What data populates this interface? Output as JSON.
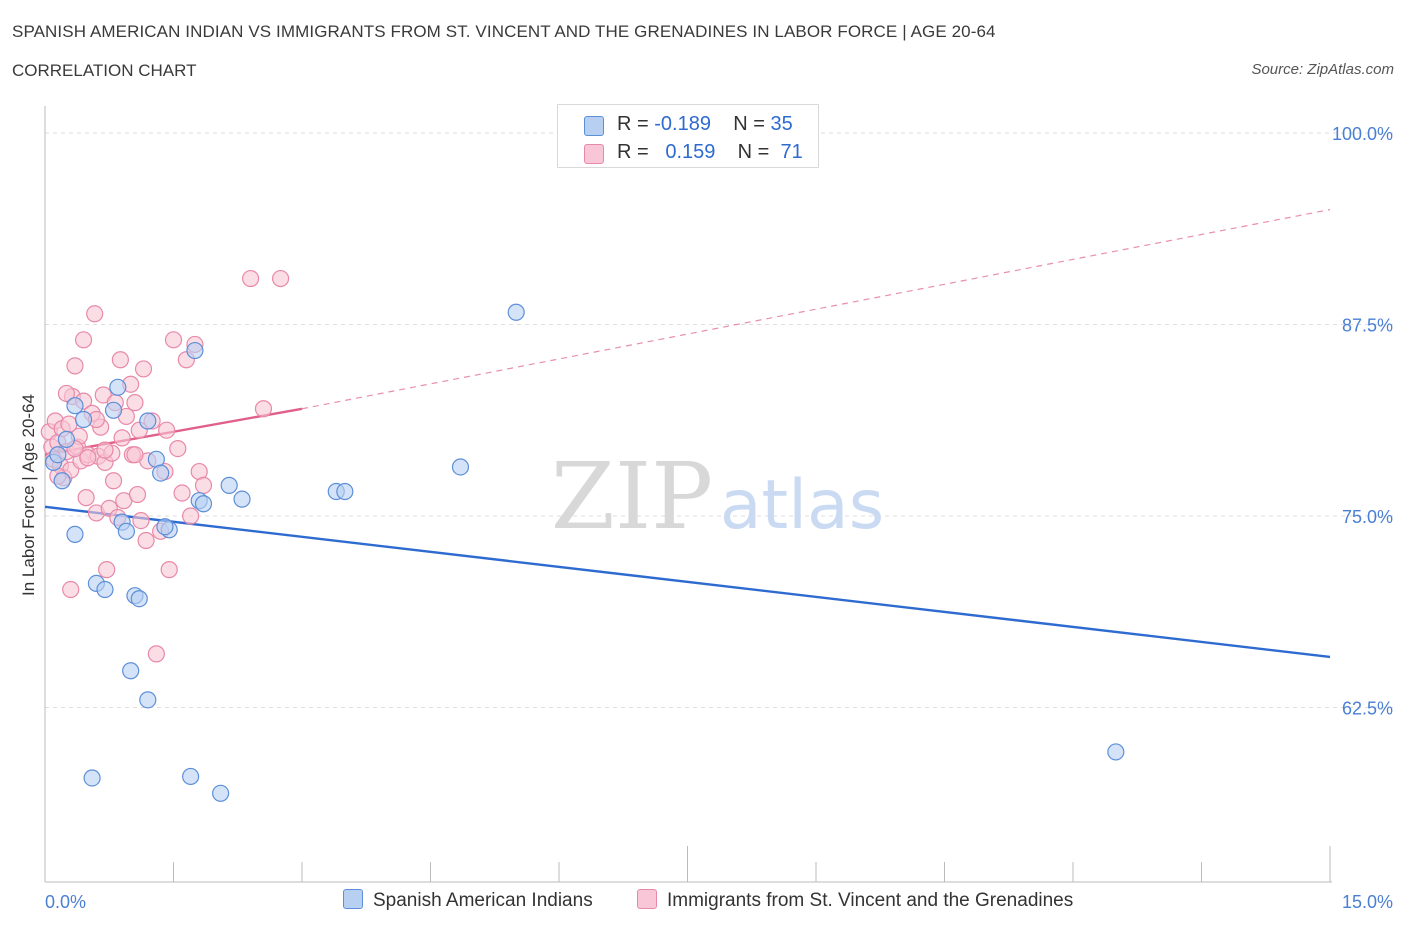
{
  "header": {
    "title": "SPANISH AMERICAN INDIAN VS IMMIGRANTS FROM ST. VINCENT AND THE GRENADINES IN LABOR FORCE | AGE 20-64",
    "subtitle": "CORRELATION CHART",
    "source": "Source: ZipAtlas.com"
  },
  "colors": {
    "blue_fill": "#b7d0f2",
    "blue_stroke": "#5d8fd8",
    "blue_line": "#2e6bd0",
    "pink_fill": "#f8c6d6",
    "pink_stroke": "#e889a8",
    "pink_line": "#e0608a",
    "grid": "#dddddd",
    "tick_label": "#4a7fd4"
  },
  "legend": {
    "r_label": "R =",
    "n_label": "N =",
    "blue": {
      "r": "-0.189",
      "n": "35"
    },
    "pink": {
      "r": "0.159",
      "n": "71"
    }
  },
  "watermark": {
    "zip": "ZIP",
    "atlas": "atlas"
  },
  "chart_data": {
    "type": "scatter",
    "title": "SPANISH AMERICAN INDIAN VS IMMIGRANTS FROM ST. VINCENT AND THE GRENADINES IN LABOR FORCE | AGE 20-64",
    "xlabel": "",
    "ylabel": "In Labor Force | Age 20-64",
    "xlim": [
      0,
      15
    ],
    "ylim": [
      50,
      103
    ],
    "x_tick_labels": {
      "min": "0.0%",
      "max": "15.0%"
    },
    "y_ticks": [
      {
        "value": 100.0,
        "label": "100.0%"
      },
      {
        "value": 87.5,
        "label": "87.5%"
      },
      {
        "value": 75.0,
        "label": "75.0%"
      },
      {
        "value": 62.5,
        "label": "62.5%"
      }
    ],
    "grid": true,
    "series": [
      {
        "name": "Spanish American Indians",
        "color": "blue",
        "trend": {
          "x": [
            0,
            15
          ],
          "y": [
            75.6,
            65.8
          ],
          "dashed_extension": false
        },
        "points": [
          [
            0.1,
            78.5
          ],
          [
            0.2,
            77.3
          ],
          [
            0.25,
            80.0
          ],
          [
            0.35,
            82.2
          ],
          [
            0.45,
            81.3
          ],
          [
            0.35,
            73.8
          ],
          [
            0.6,
            70.6
          ],
          [
            0.7,
            70.2
          ],
          [
            0.8,
            81.9
          ],
          [
            0.85,
            83.4
          ],
          [
            0.9,
            74.6
          ],
          [
            0.95,
            74.0
          ],
          [
            1.05,
            69.8
          ],
          [
            1.1,
            69.6
          ],
          [
            1.2,
            81.2
          ],
          [
            1.3,
            78.7
          ],
          [
            1.35,
            77.8
          ],
          [
            1.45,
            74.1
          ],
          [
            1.75,
            85.8
          ],
          [
            1.8,
            76.0
          ],
          [
            1.85,
            75.8
          ],
          [
            2.15,
            77.0
          ],
          [
            2.3,
            76.1
          ],
          [
            3.4,
            76.6
          ],
          [
            3.5,
            76.6
          ],
          [
            1.0,
            64.9
          ],
          [
            1.2,
            63.0
          ],
          [
            0.55,
            57.9
          ],
          [
            1.7,
            58.0
          ],
          [
            2.05,
            56.9
          ],
          [
            4.85,
            78.2
          ],
          [
            5.5,
            88.3
          ],
          [
            12.5,
            59.6
          ],
          [
            0.15,
            79.0
          ],
          [
            1.4,
            74.3
          ]
        ]
      },
      {
        "name": "Immigrants from St. Vincent and the Grenadines",
        "color": "pink",
        "trend": {
          "x": [
            0,
            3.0
          ],
          "y": [
            79.0,
            82.0
          ],
          "dashed_to": [
            15,
            95.0
          ]
        },
        "points": [
          [
            0.05,
            80.5
          ],
          [
            0.08,
            79.5
          ],
          [
            0.1,
            78.7
          ],
          [
            0.12,
            81.2
          ],
          [
            0.15,
            79.8
          ],
          [
            0.18,
            78.3
          ],
          [
            0.2,
            80.7
          ],
          [
            0.22,
            77.5
          ],
          [
            0.25,
            79.2
          ],
          [
            0.28,
            81.0
          ],
          [
            0.3,
            78.0
          ],
          [
            0.32,
            82.8
          ],
          [
            0.35,
            84.8
          ],
          [
            0.38,
            79.5
          ],
          [
            0.4,
            80.2
          ],
          [
            0.42,
            78.6
          ],
          [
            0.45,
            82.5
          ],
          [
            0.48,
            76.2
          ],
          [
            0.5,
            79.0
          ],
          [
            0.55,
            81.7
          ],
          [
            0.58,
            88.2
          ],
          [
            0.6,
            75.2
          ],
          [
            0.62,
            78.9
          ],
          [
            0.65,
            80.8
          ],
          [
            0.68,
            82.9
          ],
          [
            0.7,
            78.5
          ],
          [
            0.72,
            71.5
          ],
          [
            0.75,
            75.5
          ],
          [
            0.78,
            79.1
          ],
          [
            0.8,
            77.3
          ],
          [
            0.82,
            82.4
          ],
          [
            0.85,
            74.9
          ],
          [
            0.88,
            85.2
          ],
          [
            0.9,
            80.1
          ],
          [
            0.92,
            76.0
          ],
          [
            0.95,
            81.5
          ],
          [
            1.0,
            83.6
          ],
          [
            1.02,
            79.0
          ],
          [
            1.05,
            82.4
          ],
          [
            1.08,
            76.4
          ],
          [
            1.1,
            80.6
          ],
          [
            1.12,
            74.7
          ],
          [
            1.15,
            84.6
          ],
          [
            1.18,
            73.4
          ],
          [
            1.2,
            78.6
          ],
          [
            1.25,
            81.2
          ],
          [
            1.3,
            66.0
          ],
          [
            1.35,
            74.0
          ],
          [
            1.4,
            77.9
          ],
          [
            1.42,
            80.6
          ],
          [
            1.45,
            71.5
          ],
          [
            1.5,
            86.5
          ],
          [
            1.55,
            79.4
          ],
          [
            1.6,
            76.5
          ],
          [
            1.65,
            85.2
          ],
          [
            1.7,
            75.0
          ],
          [
            1.75,
            86.2
          ],
          [
            1.8,
            77.9
          ],
          [
            1.85,
            77.0
          ],
          [
            2.4,
            90.5
          ],
          [
            2.75,
            90.5
          ],
          [
            2.55,
            82.0
          ],
          [
            0.3,
            70.2
          ],
          [
            0.45,
            86.5
          ],
          [
            0.15,
            77.6
          ],
          [
            0.25,
            83.0
          ],
          [
            0.6,
            81.3
          ],
          [
            0.7,
            79.3
          ],
          [
            1.05,
            79.0
          ],
          [
            0.35,
            79.4
          ],
          [
            0.5,
            78.8
          ]
        ]
      }
    ]
  },
  "bottom_legend": {
    "blue_label": "Spanish American Indians",
    "pink_label": "Immigrants from St. Vincent and the Grenadines"
  }
}
